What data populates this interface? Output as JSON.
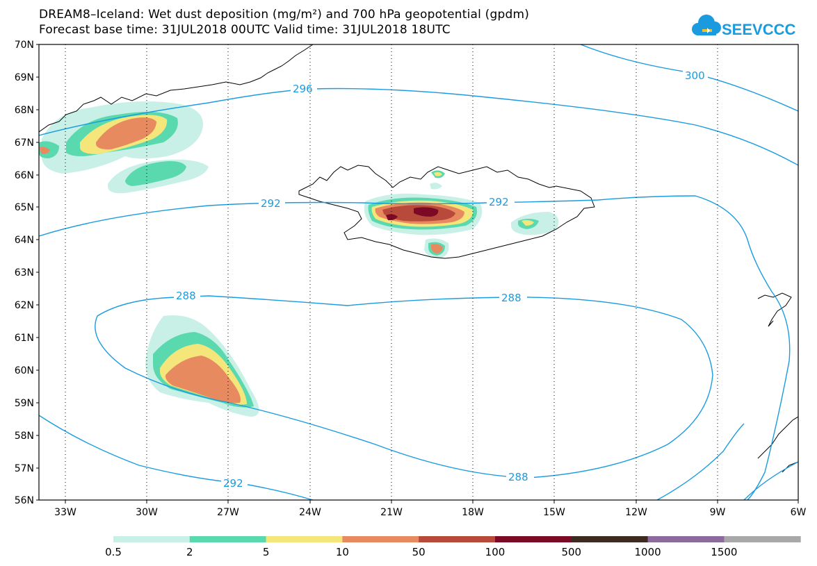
{
  "title": {
    "line1": "DREAM8–Iceland: Wet dust deposition (mg/m²) and 700 hPa geopotential (gpdm)",
    "line2": "Forecast base time: 31JUL2018 00UTC    Valid time: 31JUL2018 18UTC"
  },
  "logo": {
    "text": "SEEVCCC",
    "color": "#1a9be0"
  },
  "axes": {
    "lat_labels": [
      "70N",
      "69N",
      "68N",
      "67N",
      "66N",
      "65N",
      "64N",
      "63N",
      "62N",
      "61N",
      "60N",
      "59N",
      "58N",
      "57N",
      "56N"
    ],
    "lon_labels": [
      "33W",
      "30W",
      "27W",
      "24W",
      "21W",
      "18W",
      "15W",
      "12W",
      "9W",
      "6W"
    ]
  },
  "contours": [
    {
      "value": "300",
      "label": "300"
    },
    {
      "value": "296",
      "label": "296"
    },
    {
      "value": "292",
      "label": "292"
    },
    {
      "value": "292b",
      "label": "292"
    },
    {
      "value": "288",
      "label": "288"
    },
    {
      "value": "288b",
      "label": "288"
    },
    {
      "value": "288c",
      "label": "288"
    },
    {
      "value": "292c",
      "label": "292"
    }
  ],
  "legend": {
    "colors": [
      "#c8f0e6",
      "#5ad9ae",
      "#f5e67c",
      "#e88a60",
      "#b84a3c",
      "#7c0a26",
      "#3d2a20",
      "#8c6a9e",
      "#a8a8a8"
    ],
    "labels": [
      "0.5",
      "2",
      "5",
      "10",
      "50",
      "100",
      "500",
      "1000",
      "1500"
    ]
  },
  "colors": {
    "contour": "#1a9be0",
    "coast": "#000000",
    "grid": "#000000"
  }
}
